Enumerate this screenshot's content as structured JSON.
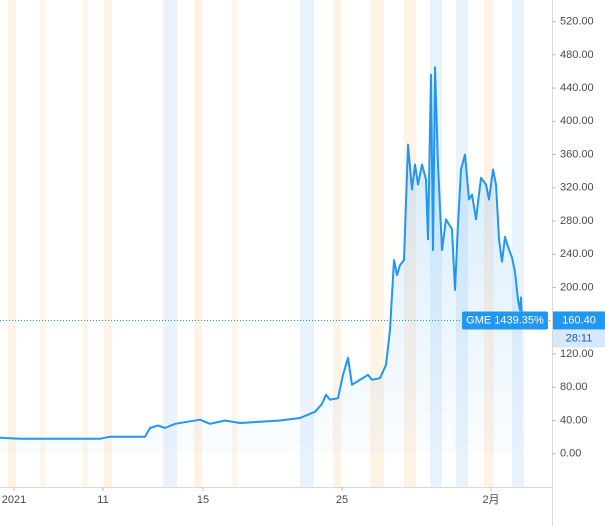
{
  "chart_data": {
    "type": "line",
    "symbol_label": "GME 1439.35%",
    "countdown": "28:11",
    "last_price": {
      "value": 160.4,
      "label": "160.40"
    },
    "color": "#2196f3",
    "x": [
      0,
      20,
      60,
      100,
      110,
      145,
      150,
      158,
      165,
      175,
      200,
      210,
      225,
      240,
      260,
      280,
      300,
      315,
      322,
      326,
      330,
      338,
      343,
      348,
      352,
      360,
      368,
      372,
      380,
      386,
      390,
      394,
      397,
      400,
      404,
      408,
      412,
      415,
      418,
      422,
      426,
      428,
      431,
      433,
      435,
      438,
      442,
      446,
      452,
      455,
      458,
      461,
      465,
      469,
      472,
      476,
      481,
      486,
      489,
      493,
      496,
      499,
      502,
      505,
      508,
      512,
      515,
      518,
      520,
      521,
      522
    ],
    "values": [
      19.3,
      18,
      18,
      18,
      20.5,
      20.5,
      31,
      34,
      31,
      36,
      41,
      36,
      40,
      37,
      38.5,
      40,
      43,
      50.5,
      60,
      71,
      65,
      67,
      95,
      115.5,
      83,
      89,
      95,
      89,
      91,
      107,
      149,
      233,
      215,
      227,
      233,
      372,
      318,
      348,
      324,
      348,
      330,
      258,
      456,
      245,
      465,
      348,
      245,
      282,
      270,
      197,
      276,
      342,
      360,
      306,
      312,
      282,
      332,
      324,
      306,
      342,
      324,
      258,
      231,
      261,
      249,
      236,
      219,
      185,
      173,
      188,
      160.4
    ],
    "xlim": [
      0,
      552
    ],
    "xticks": [
      {
        "value": 14,
        "label": "2021"
      },
      {
        "value": 103,
        "label": "11"
      },
      {
        "value": 203,
        "label": "15"
      },
      {
        "value": 342,
        "label": "25"
      },
      {
        "value": 491,
        "label": "2月"
      }
    ],
    "ylim": [
      -40,
      546
    ],
    "yticks": [
      {
        "value": 0,
        "label": "0.00"
      },
      {
        "value": 40,
        "label": "40.00"
      },
      {
        "value": 80,
        "label": "80.00"
      },
      {
        "value": 120,
        "label": "120.00"
      },
      {
        "value": 160,
        "label": "160.00"
      },
      {
        "value": 200,
        "label": "200.00"
      },
      {
        "value": 240,
        "label": "240.00"
      },
      {
        "value": 280,
        "label": "280.00"
      },
      {
        "value": 320,
        "label": "320.00"
      },
      {
        "value": 360,
        "label": "360.00"
      },
      {
        "value": 400,
        "label": "400.00"
      },
      {
        "value": 440,
        "label": "440.00"
      },
      {
        "value": 480,
        "label": "480.00"
      },
      {
        "value": 520,
        "label": "520.00"
      }
    ]
  }
}
